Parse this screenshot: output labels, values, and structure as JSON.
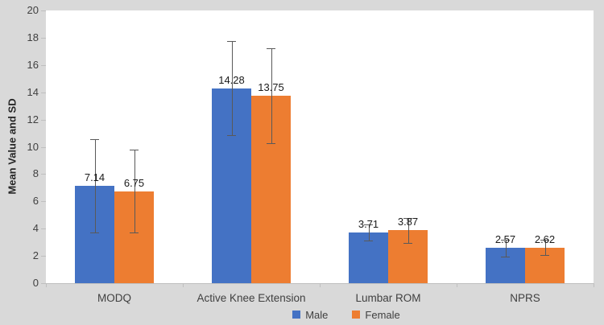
{
  "chart_data": {
    "type": "bar",
    "title": "",
    "xlabel": "",
    "ylabel": "Mean Value and SD",
    "ylim": [
      0,
      20
    ],
    "ytick_interval": 2,
    "grid": false,
    "legend_position": "bottom-center",
    "error_bars": true,
    "categories": [
      "MODQ",
      "Active Knee Extension",
      "Lumbar ROM",
      "NPRS"
    ],
    "series": [
      {
        "name": "Male",
        "color": "#4472C4",
        "values": [
          7.14,
          14.28,
          3.71,
          2.57
        ],
        "sd": [
          3.43,
          3.45,
          0.6,
          0.6
        ]
      },
      {
        "name": "Female",
        "color": "#ED7D31",
        "values": [
          6.75,
          13.75,
          3.87,
          2.62
        ],
        "sd": [
          3.04,
          3.5,
          0.9,
          0.55
        ]
      }
    ],
    "data_labels": [
      [
        "7.14",
        "14.28",
        "3.71",
        "2.57"
      ],
      [
        "6.75",
        "13.75",
        "3.87",
        "2.62"
      ]
    ]
  },
  "colors": {
    "background": "#d9d9d9",
    "plot_background": "#ffffff",
    "axis_line": "#bfbfbf",
    "error_bar": "#595959",
    "tick_text": "#404040",
    "data_label_text": "#1a1a1a"
  }
}
